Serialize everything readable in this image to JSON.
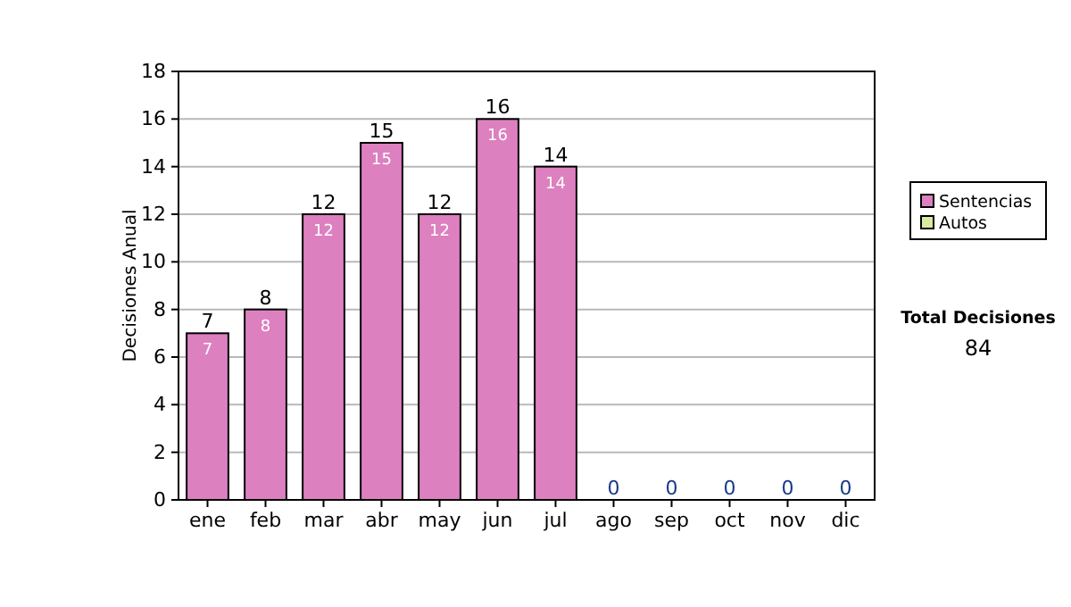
{
  "chart_data": {
    "type": "bar",
    "ylabel": "Decisiones Anual",
    "categories": [
      "ene",
      "feb",
      "mar",
      "abr",
      "may",
      "jun",
      "jul",
      "ago",
      "sep",
      "oct",
      "nov",
      "dic"
    ],
    "series": [
      {
        "name": "Sentencias",
        "color": "#dd80c0",
        "values": [
          7,
          8,
          12,
          15,
          12,
          16,
          14,
          0,
          0,
          0,
          0,
          0
        ],
        "value_labels": [
          "7",
          "8",
          "12",
          "15",
          "12",
          "16",
          "14",
          null,
          null,
          null,
          null,
          null
        ]
      },
      {
        "name": "Autos",
        "color": "#d8eba0",
        "values": [
          0,
          0,
          0,
          0,
          0,
          0,
          0,
          0,
          0,
          0,
          0,
          0
        ],
        "value_labels": [
          null,
          null,
          null,
          null,
          null,
          null,
          null,
          null,
          null,
          null,
          null,
          null
        ]
      }
    ],
    "stacked": true,
    "totals": [
      "7",
      "8",
      "12",
      "15",
      "12",
      "16",
      "14",
      "0",
      "0",
      "0",
      "0",
      "0"
    ],
    "ylim": [
      0,
      18
    ],
    "yticks": [
      0,
      2,
      4,
      6,
      8,
      10,
      12,
      14,
      16,
      18
    ],
    "grid": "y",
    "legend": "right",
    "annotations": [
      "Total Decisiones",
      "84"
    ]
  }
}
